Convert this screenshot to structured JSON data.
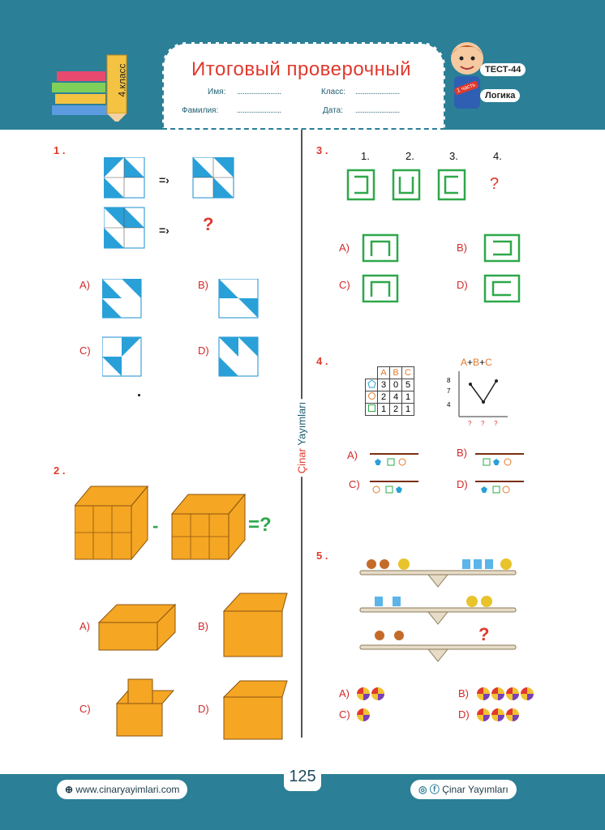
{
  "header": {
    "title": "Итоговый проверочный",
    "grade_label": "4.класс",
    "name_label": "Имя:",
    "surname_label": "Фамилия:",
    "class_label": "Класс:",
    "date_label": "Дата:",
    "dots": "........................",
    "test_badge": "ТЕСТ-44",
    "part_label": "1 часть",
    "subject_badge": "Логика"
  },
  "side_text": {
    "brand1": "Çinar",
    "brand2": "Yayımları"
  },
  "q1": {
    "number": "1 .",
    "arrow": "=›",
    "question_mark": "?",
    "options": [
      "A)",
      "B)",
      "C)",
      "D)"
    ]
  },
  "q2": {
    "number": "2 .",
    "minus": "-",
    "equals_q": "=?",
    "options": [
      "A)",
      "B)",
      "C)",
      "D)"
    ]
  },
  "q3": {
    "number": "3 .",
    "seq_labels": [
      "1.",
      "2.",
      "3.",
      "4."
    ],
    "question_mark": "?",
    "options": [
      "A)",
      "B)",
      "C)",
      "D)"
    ]
  },
  "q4": {
    "number": "4 .",
    "table_headers": [
      "A",
      "B",
      "C"
    ],
    "table_rows": [
      [
        "3",
        "0",
        "5"
      ],
      [
        "2",
        "4",
        "1"
      ],
      [
        "1",
        "2",
        "1"
      ]
    ],
    "graph_title": [
      "A",
      "+",
      "B",
      "+",
      "C"
    ],
    "y_ticks": [
      "8",
      "7",
      "4"
    ],
    "x_ticks": [
      "?",
      "?",
      "?"
    ],
    "options": [
      "A)",
      "B)",
      "C)",
      "D)"
    ]
  },
  "q5": {
    "number": "5 .",
    "question_mark": "?",
    "options": [
      "A)",
      "B)",
      "C)",
      "D)"
    ],
    "answer_ball_counts": [
      2,
      4,
      1,
      3
    ]
  },
  "footer": {
    "website": "www.cinaryayimlari.com",
    "page_number": "125",
    "social": "Çinar Yayımları"
  },
  "colors": {
    "teal": "#2b7f97",
    "red": "#e0392d",
    "green": "#2ea84a",
    "orange": "#f5a623",
    "blue": "#29a0d8"
  }
}
